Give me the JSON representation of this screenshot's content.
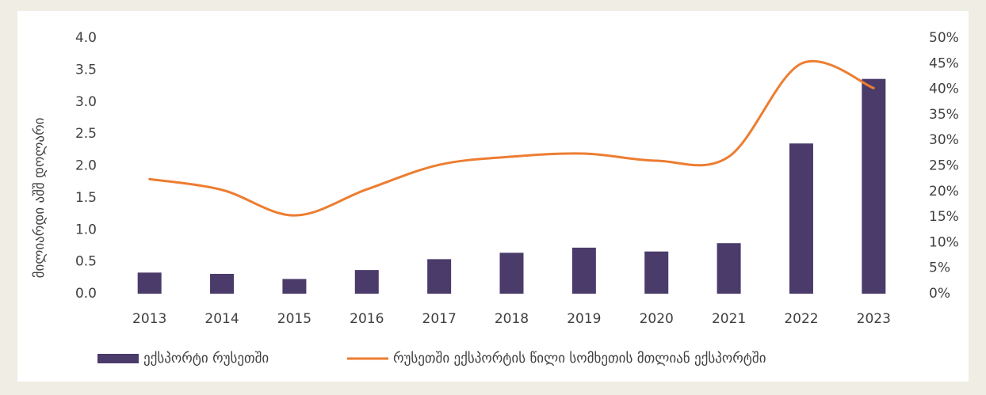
{
  "chart_data": {
    "type": "bar-line",
    "y_label": "მილიარდი აშშ დოლარი",
    "categories": [
      "2013",
      "2014",
      "2015",
      "2016",
      "2017",
      "2018",
      "2019",
      "2020",
      "2021",
      "2022",
      "2023"
    ],
    "series": [
      {
        "name": "ექსპორტი რუსეთში",
        "type": "bar",
        "color": "#4a3b6b",
        "values": [
          0.33,
          0.31,
          0.23,
          0.37,
          0.54,
          0.64,
          0.72,
          0.66,
          0.79,
          2.35,
          3.36
        ]
      },
      {
        "name": "რუსეთში ექსპორტის წილი სომხეთის მთლიან ექსპორტში",
        "type": "line",
        "axis": "y2",
        "color": "#ed7d31",
        "smooth": true,
        "values": [
          22.4,
          20.3,
          15.3,
          20.4,
          25.2,
          26.8,
          27.4,
          26.0,
          26.8,
          45.0,
          40.2
        ]
      }
    ],
    "ylim": [
      0,
      4
    ],
    "yticks": [
      {
        "value": 0,
        "label": "0.0"
      },
      {
        "value": 0.5,
        "label": "0.5"
      },
      {
        "value": 1,
        "label": "1.0"
      },
      {
        "value": 1.5,
        "label": "1.5"
      },
      {
        "value": 2,
        "label": "2.0"
      },
      {
        "value": 2.5,
        "label": "2.5"
      },
      {
        "value": 3,
        "label": "3.0"
      },
      {
        "value": 3.5,
        "label": "3.5"
      },
      {
        "value": 4,
        "label": "4.0"
      }
    ],
    "y2lim": [
      0,
      50
    ],
    "y2ticks": [
      {
        "value": 0,
        "label": "0%"
      },
      {
        "value": 5,
        "label": "5%"
      },
      {
        "value": 10,
        "label": "10%"
      },
      {
        "value": 15,
        "label": "15%"
      },
      {
        "value": 20,
        "label": "20%"
      },
      {
        "value": 25,
        "label": "25%"
      },
      {
        "value": 30,
        "label": "30%"
      },
      {
        "value": 35,
        "label": "35%"
      },
      {
        "value": 40,
        "label": "40%"
      },
      {
        "value": 45,
        "label": "45%"
      },
      {
        "value": 50,
        "label": "50%"
      }
    ],
    "grid": false,
    "legend": "bottom"
  }
}
